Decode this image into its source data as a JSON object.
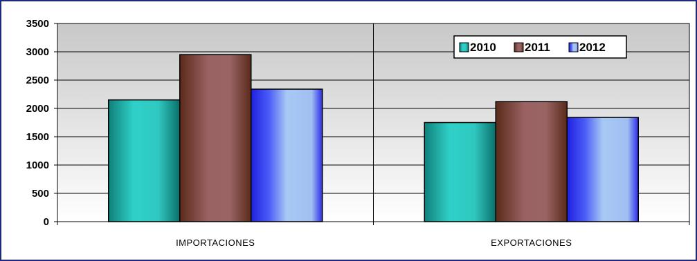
{
  "chart_data": {
    "type": "bar",
    "categories": [
      "IMPORTACIONES",
      "EXPORTACIONES"
    ],
    "series": [
      {
        "name": "2010",
        "values": [
          2150,
          1750
        ],
        "color": "#1fb8b0"
      },
      {
        "name": "2011",
        "values": [
          2950,
          2120
        ],
        "color": "#8a4a44"
      },
      {
        "name": "2012",
        "values": [
          2340,
          1840
        ],
        "color": "#3a4cf0"
      }
    ],
    "ylim": [
      0,
      3500
    ],
    "yticks": [
      "0",
      "500",
      "1000",
      "1500",
      "2000",
      "2500",
      "3000",
      "3500"
    ],
    "grid": true,
    "legend": "top-right"
  }
}
